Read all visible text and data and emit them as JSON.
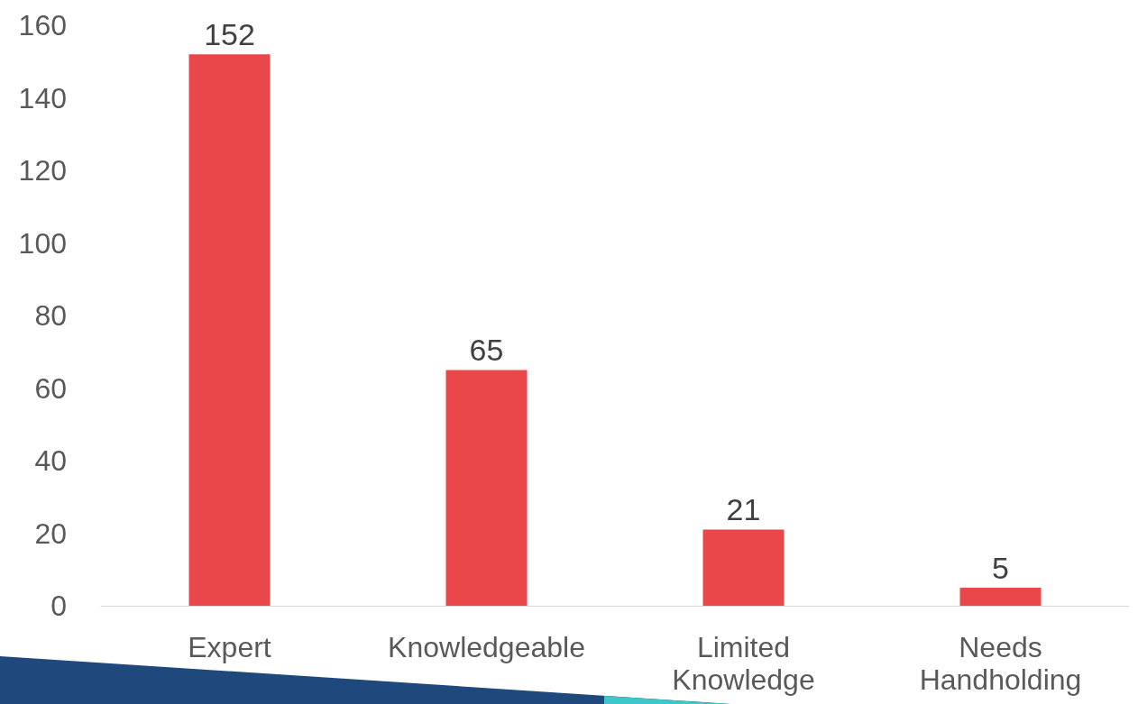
{
  "chart_data": {
    "type": "bar",
    "categories": [
      "Expert",
      "Knowledgeable",
      "Limited\nKnowledge",
      "Needs\nHandholding"
    ],
    "values": [
      152,
      65,
      21,
      5
    ],
    "color": "#e9474a",
    "ylim": [
      0,
      160
    ],
    "yticks": [
      0,
      20,
      40,
      60,
      80,
      100,
      120,
      140,
      160
    ],
    "grid": false,
    "data_labels": true
  }
}
